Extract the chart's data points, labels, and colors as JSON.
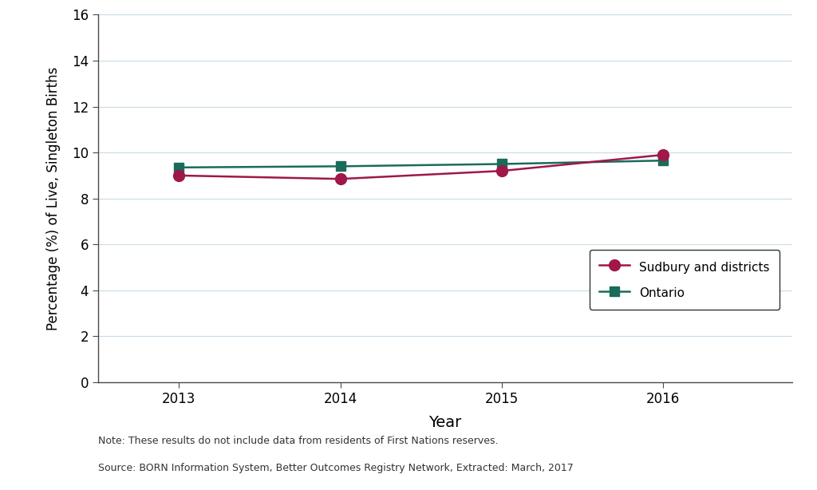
{
  "years": [
    2013,
    2014,
    2015,
    2016
  ],
  "sudbury_values": [
    9.0,
    8.85,
    9.2,
    9.9
  ],
  "ontario_values": [
    9.35,
    9.4,
    9.5,
    9.65
  ],
  "sudbury_color": "#A0174A",
  "ontario_color": "#1A6B5A",
  "sudbury_label": "Sudbury and districts",
  "ontario_label": "Ontario",
  "ylabel": "Percentage (%) of Live, Singleton Births",
  "xlabel": "Year",
  "ylim": [
    0,
    16
  ],
  "yticks": [
    0,
    2,
    4,
    6,
    8,
    10,
    12,
    14,
    16
  ],
  "xlim": [
    2012.5,
    2016.8
  ],
  "xticks": [
    2013,
    2014,
    2015,
    2016
  ],
  "note_line1": "Note: These results do not include data from residents of First Nations reserves.",
  "note_line2": "Source: BORN Information System, Better Outcomes Registry Network, Extracted: March, 2017",
  "background_color": "#ffffff",
  "grid_color": "#c8dce8",
  "spine_color": "#4a4a4a"
}
